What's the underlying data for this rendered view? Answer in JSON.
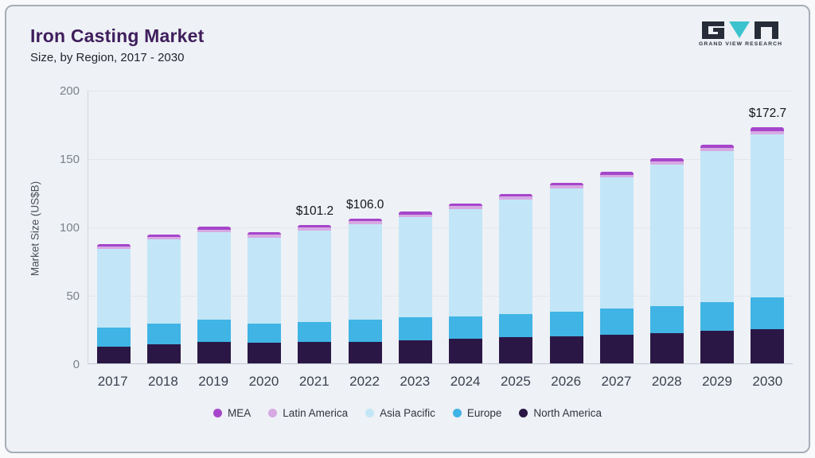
{
  "header": {
    "title": "Iron Casting Market",
    "subtitle": "Size, by Region, 2017 - 2030",
    "logo_text": "GRAND VIEW RESEARCH"
  },
  "chart_data": {
    "type": "bar",
    "stacked": true,
    "title": "Iron Casting Market Size, by Region, 2017 - 2030",
    "ylabel": "Market Size (US$B)",
    "ylim": [
      0,
      200
    ],
    "yticks": [
      0,
      50,
      100,
      150,
      200
    ],
    "categories": [
      "2017",
      "2018",
      "2019",
      "2020",
      "2021",
      "2022",
      "2023",
      "2024",
      "2025",
      "2026",
      "2027",
      "2028",
      "2029",
      "2030"
    ],
    "series": [
      {
        "name": "North America",
        "color": "#2b1745",
        "values": [
          12,
          14,
          16,
          15,
          15.5,
          16,
          17,
          18,
          19,
          20,
          21,
          22,
          24,
          25
        ]
      },
      {
        "name": "Europe",
        "color": "#3fb4e5",
        "values": [
          14,
          15,
          16,
          14,
          15,
          16,
          16.5,
          16.5,
          17,
          18,
          19,
          20,
          21,
          23
        ]
      },
      {
        "name": "Asia Pacific",
        "color": "#c2e6f7",
        "values": [
          58,
          62,
          64,
          63,
          66.7,
          70,
          73.5,
          78.5,
          84,
          90,
          96,
          103.5,
          110,
          119.2
        ]
      },
      {
        "name": "Latin America",
        "color": "#d7a9e3",
        "values": [
          1.5,
          1.5,
          2,
          2,
          2,
          2,
          2,
          2,
          2,
          2,
          2,
          2.25,
          2.5,
          2.75
        ]
      },
      {
        "name": "MEA",
        "color": "#a546cb",
        "values": [
          1.5,
          1.5,
          2,
          2,
          2,
          2,
          2,
          2,
          2,
          2,
          2,
          2.25,
          2.5,
          2.75
        ]
      }
    ],
    "annotations": [
      {
        "category": "2021",
        "label": "$101.2"
      },
      {
        "category": "2022",
        "label": "$106.0"
      },
      {
        "category": "2030",
        "label": "$172.7"
      }
    ],
    "legend": [
      "MEA",
      "Latin America",
      "Asia Pacific",
      "Europe",
      "North America"
    ],
    "legend_position": "bottom",
    "grid": true
  }
}
